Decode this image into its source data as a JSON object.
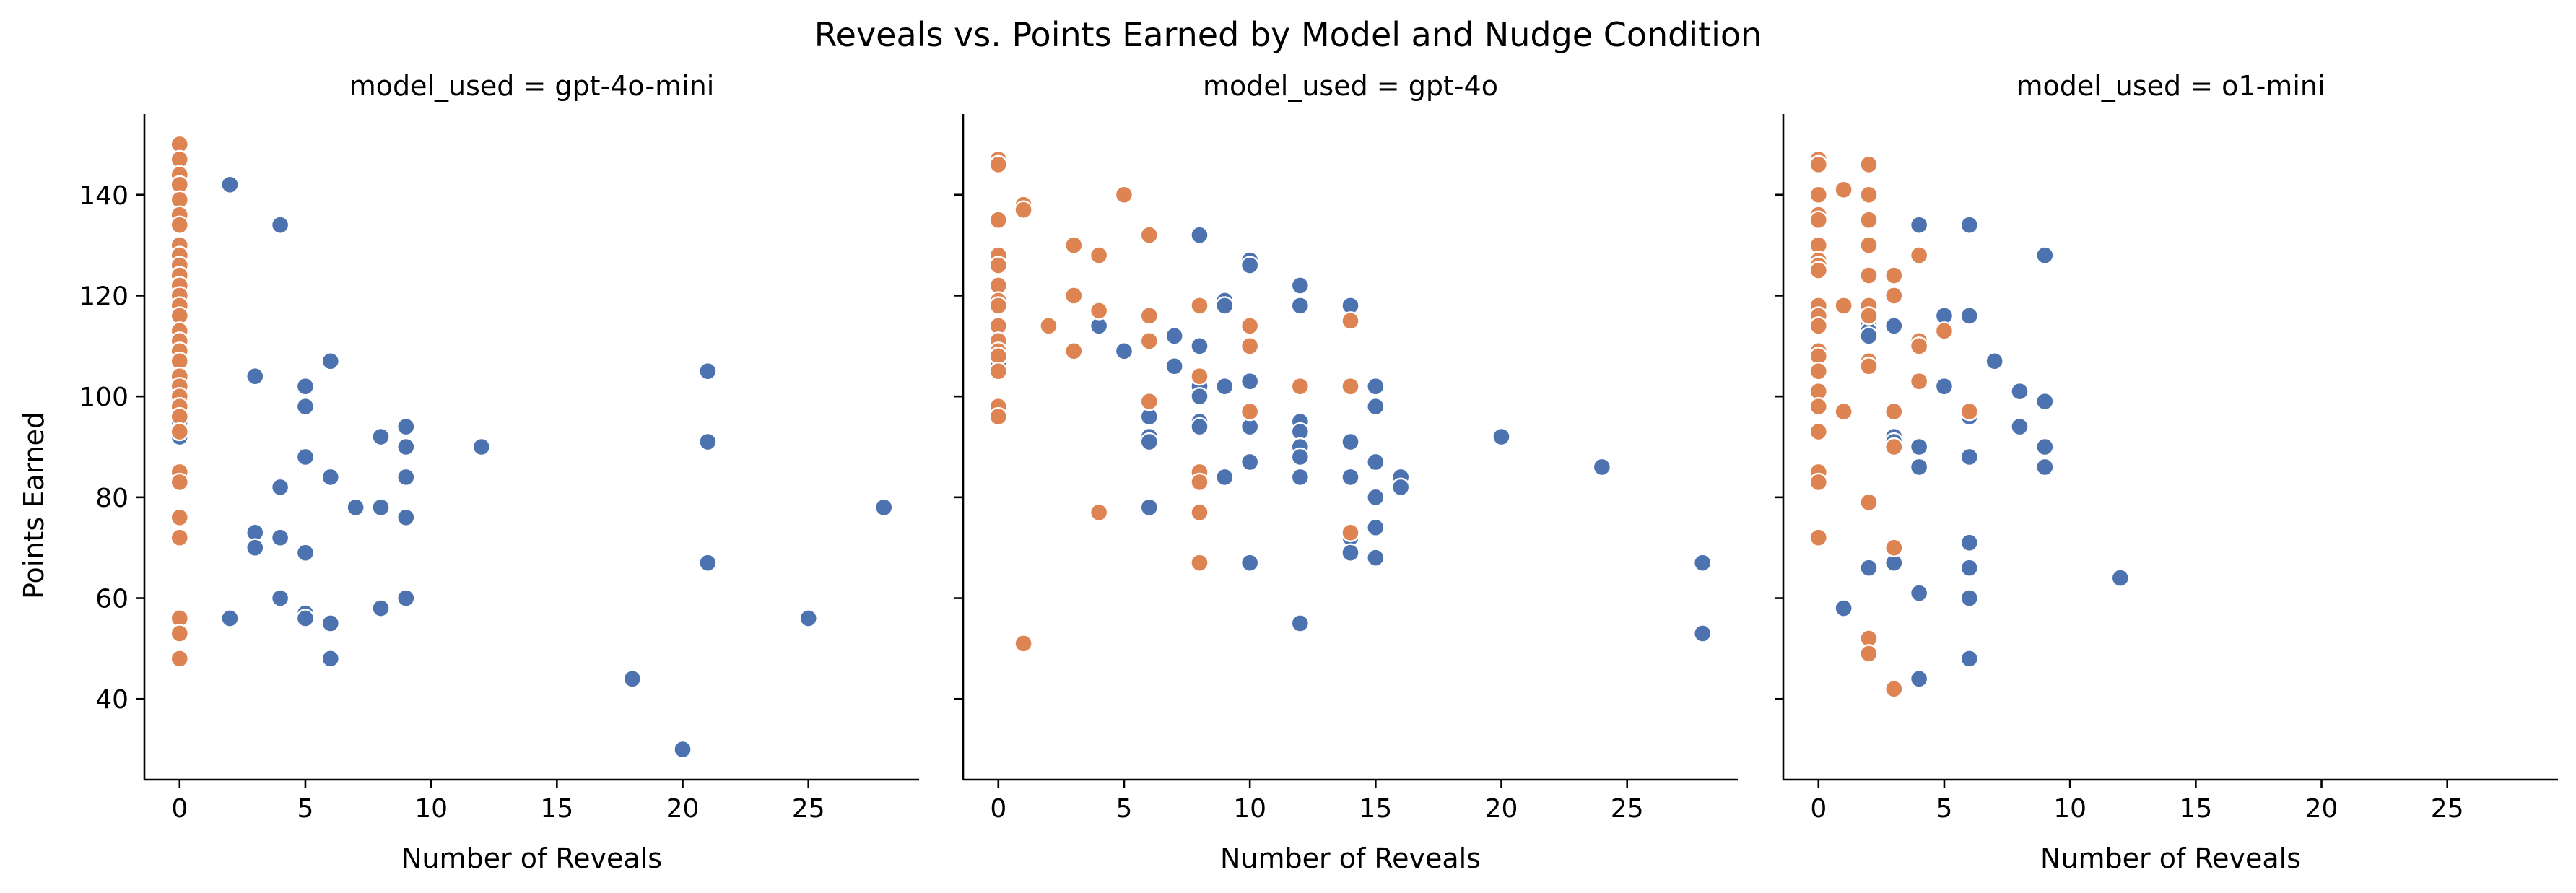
{
  "chart_data": {
    "type": "scatter",
    "title": "Reveals vs. Points Earned by Model and Nudge Condition",
    "xlabel": "Number of Reveals",
    "ylabel": "Points Earned",
    "xlim": [
      -1.4,
      29.4
    ],
    "ylim": [
      24,
      156
    ],
    "xticks": [
      0,
      5,
      10,
      15,
      20,
      25
    ],
    "yticks": [
      40,
      60,
      80,
      100,
      120,
      140
    ],
    "grid": false,
    "shared_y": true,
    "colors": {
      "blue": "#4c72b0",
      "orange": "#dd8452"
    },
    "panels": [
      {
        "title": "model_used = gpt-4o-mini",
        "series": [
          {
            "color": "#4c72b0",
            "points": [
              [
                0,
                92
              ],
              [
                0,
                95
              ],
              [
                0,
                98
              ],
              [
                0,
                101
              ],
              [
                0,
                104
              ],
              [
                0,
                110
              ],
              [
                2,
                142
              ],
              [
                2,
                56
              ],
              [
                3,
                104
              ],
              [
                3,
                73
              ],
              [
                3,
                70
              ],
              [
                4,
                134
              ],
              [
                4,
                82
              ],
              [
                4,
                72
              ],
              [
                4,
                60
              ],
              [
                5,
                102
              ],
              [
                5,
                98
              ],
              [
                5,
                88
              ],
              [
                5,
                69
              ],
              [
                5,
                57
              ],
              [
                5,
                56
              ],
              [
                6,
                107
              ],
              [
                6,
                84
              ],
              [
                6,
                55
              ],
              [
                6,
                48
              ],
              [
                7,
                78
              ],
              [
                8,
                92
              ],
              [
                8,
                78
              ],
              [
                8,
                58
              ],
              [
                9,
                94
              ],
              [
                9,
                90
              ],
              [
                9,
                84
              ],
              [
                9,
                76
              ],
              [
                9,
                60
              ],
              [
                12,
                90
              ],
              [
                18,
                44
              ],
              [
                20,
                30
              ],
              [
                21,
                105
              ],
              [
                21,
                91
              ],
              [
                21,
                67
              ],
              [
                25,
                56
              ],
              [
                28,
                78
              ]
            ]
          },
          {
            "color": "#dd8452",
            "points": [
              [
                0,
                150
              ],
              [
                0,
                147
              ],
              [
                0,
                144
              ],
              [
                0,
                142
              ],
              [
                0,
                139
              ],
              [
                0,
                136
              ],
              [
                0,
                134
              ],
              [
                0,
                130
              ],
              [
                0,
                128
              ],
              [
                0,
                126
              ],
              [
                0,
                124
              ],
              [
                0,
                122
              ],
              [
                0,
                120
              ],
              [
                0,
                118
              ],
              [
                0,
                116
              ],
              [
                0,
                113
              ],
              [
                0,
                111
              ],
              [
                0,
                109
              ],
              [
                0,
                107
              ],
              [
                0,
                104
              ],
              [
                0,
                102
              ],
              [
                0,
                100
              ],
              [
                0,
                98
              ],
              [
                0,
                96
              ],
              [
                0,
                93
              ],
              [
                0,
                85
              ],
              [
                0,
                83
              ],
              [
                0,
                76
              ],
              [
                0,
                72
              ],
              [
                0,
                56
              ],
              [
                0,
                53
              ],
              [
                0,
                48
              ]
            ]
          }
        ]
      },
      {
        "title": "model_used = gpt-4o",
        "series": [
          {
            "color": "#4c72b0",
            "points": [
              [
                0,
                106
              ],
              [
                4,
                114
              ],
              [
                5,
                109
              ],
              [
                6,
                96
              ],
              [
                6,
                92
              ],
              [
                6,
                91
              ],
              [
                6,
                78
              ],
              [
                7,
                112
              ],
              [
                7,
                106
              ],
              [
                8,
                132
              ],
              [
                8,
                110
              ],
              [
                8,
                102
              ],
              [
                8,
                100
              ],
              [
                8,
                95
              ],
              [
                8,
                94
              ],
              [
                9,
                119
              ],
              [
                9,
                118
              ],
              [
                9,
                102
              ],
              [
                9,
                84
              ],
              [
                10,
                127
              ],
              [
                10,
                126
              ],
              [
                10,
                103
              ],
              [
                10,
                94
              ],
              [
                10,
                87
              ],
              [
                10,
                67
              ],
              [
                12,
                122
              ],
              [
                12,
                118
              ],
              [
                12,
                95
              ],
              [
                12,
                93
              ],
              [
                12,
                90
              ],
              [
                12,
                88
              ],
              [
                12,
                84
              ],
              [
                12,
                55
              ],
              [
                14,
                118
              ],
              [
                14,
                102
              ],
              [
                14,
                91
              ],
              [
                14,
                84
              ],
              [
                14,
                72
              ],
              [
                14,
                69
              ],
              [
                15,
                102
              ],
              [
                15,
                98
              ],
              [
                15,
                87
              ],
              [
                15,
                80
              ],
              [
                15,
                74
              ],
              [
                15,
                68
              ],
              [
                16,
                84
              ],
              [
                16,
                82
              ],
              [
                20,
                92
              ],
              [
                24,
                86
              ],
              [
                28,
                67
              ],
              [
                28,
                53
              ]
            ]
          },
          {
            "color": "#dd8452",
            "points": [
              [
                0,
                147
              ],
              [
                0,
                146
              ],
              [
                0,
                135
              ],
              [
                0,
                128
              ],
              [
                0,
                126
              ],
              [
                0,
                122
              ],
              [
                0,
                119
              ],
              [
                0,
                118
              ],
              [
                0,
                114
              ],
              [
                0,
                111
              ],
              [
                0,
                109
              ],
              [
                0,
                108
              ],
              [
                0,
                105
              ],
              [
                0,
                98
              ],
              [
                0,
                96
              ],
              [
                1,
                138
              ],
              [
                1,
                137
              ],
              [
                1,
                51
              ],
              [
                2,
                114
              ],
              [
                3,
                130
              ],
              [
                3,
                120
              ],
              [
                3,
                109
              ],
              [
                4,
                128
              ],
              [
                4,
                117
              ],
              [
                4,
                77
              ],
              [
                5,
                140
              ],
              [
                6,
                132
              ],
              [
                6,
                116
              ],
              [
                6,
                111
              ],
              [
                6,
                99
              ],
              [
                8,
                118
              ],
              [
                8,
                104
              ],
              [
                8,
                85
              ],
              [
                8,
                83
              ],
              [
                8,
                77
              ],
              [
                8,
                67
              ],
              [
                10,
                114
              ],
              [
                10,
                110
              ],
              [
                10,
                97
              ],
              [
                12,
                102
              ],
              [
                14,
                115
              ],
              [
                14,
                102
              ],
              [
                14,
                73
              ]
            ]
          }
        ]
      },
      {
        "title": "model_used = o1-mini",
        "series": [
          {
            "color": "#4c72b0",
            "points": [
              [
                1,
                58
              ],
              [
                2,
                118
              ],
              [
                2,
                114
              ],
              [
                2,
                113
              ],
              [
                2,
                112
              ],
              [
                2,
                66
              ],
              [
                3,
                114
              ],
              [
                3,
                92
              ],
              [
                3,
                91
              ],
              [
                3,
                67
              ],
              [
                4,
                134
              ],
              [
                4,
                90
              ],
              [
                4,
                86
              ],
              [
                4,
                61
              ],
              [
                4,
                44
              ],
              [
                5,
                116
              ],
              [
                5,
                102
              ],
              [
                6,
                134
              ],
              [
                6,
                116
              ],
              [
                6,
                97
              ],
              [
                6,
                96
              ],
              [
                6,
                88
              ],
              [
                6,
                71
              ],
              [
                6,
                66
              ],
              [
                6,
                60
              ],
              [
                6,
                48
              ],
              [
                7,
                107
              ],
              [
                8,
                101
              ],
              [
                8,
                94
              ],
              [
                9,
                128
              ],
              [
                9,
                99
              ],
              [
                9,
                90
              ],
              [
                9,
                86
              ],
              [
                12,
                64
              ]
            ]
          },
          {
            "color": "#dd8452",
            "points": [
              [
                0,
                147
              ],
              [
                0,
                146
              ],
              [
                0,
                140
              ],
              [
                0,
                136
              ],
              [
                0,
                135
              ],
              [
                0,
                130
              ],
              [
                0,
                127
              ],
              [
                0,
                126
              ],
              [
                0,
                125
              ],
              [
                0,
                118
              ],
              [
                0,
                116
              ],
              [
                0,
                114
              ],
              [
                0,
                109
              ],
              [
                0,
                108
              ],
              [
                0,
                105
              ],
              [
                0,
                101
              ],
              [
                0,
                98
              ],
              [
                0,
                93
              ],
              [
                0,
                85
              ],
              [
                0,
                83
              ],
              [
                0,
                72
              ],
              [
                1,
                141
              ],
              [
                1,
                118
              ],
              [
                1,
                97
              ],
              [
                2,
                146
              ],
              [
                2,
                140
              ],
              [
                2,
                135
              ],
              [
                2,
                130
              ],
              [
                2,
                124
              ],
              [
                2,
                118
              ],
              [
                2,
                116
              ],
              [
                2,
                107
              ],
              [
                2,
                106
              ],
              [
                2,
                79
              ],
              [
                2,
                52
              ],
              [
                2,
                49
              ],
              [
                3,
                124
              ],
              [
                3,
                120
              ],
              [
                3,
                97
              ],
              [
                3,
                90
              ],
              [
                3,
                70
              ],
              [
                3,
                42
              ],
              [
                4,
                128
              ],
              [
                4,
                111
              ],
              [
                4,
                110
              ],
              [
                4,
                103
              ],
              [
                5,
                113
              ],
              [
                6,
                97
              ]
            ]
          }
        ]
      }
    ]
  }
}
